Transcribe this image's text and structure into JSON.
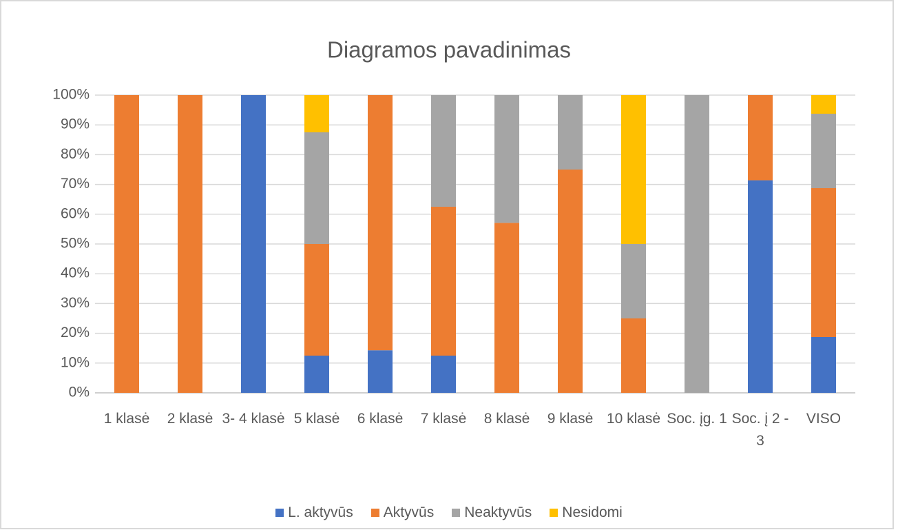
{
  "chart_data": {
    "type": "stacked_bar",
    "title": "Diagramos pavadinimas",
    "categories": [
      "1 klasė",
      "2 klasė",
      "3- 4 klasė",
      "5 klasė",
      "6 klasė",
      "7 klasė",
      "8 klasė",
      "9 klasė",
      "10 klasė",
      "Soc. įg. 1",
      "Soc. į 2 - 3",
      "VISO"
    ],
    "series": [
      {
        "name": "L. aktyvūs",
        "color": "#4472c4",
        "values": [
          0,
          0,
          100,
          12.5,
          14.3,
          12.5,
          0,
          0,
          0,
          0,
          71.4,
          18.75
        ]
      },
      {
        "name": "Aktyvūs",
        "color": "#ed7d31",
        "values": [
          100,
          100,
          0,
          37.5,
          85.7,
          50,
          57.1,
          75,
          25,
          0,
          28.6,
          50
        ]
      },
      {
        "name": "Neaktyvūs",
        "color": "#a5a5a5",
        "values": [
          0,
          0,
          0,
          37.5,
          0,
          37.5,
          42.9,
          25,
          25,
          100,
          0,
          25
        ]
      },
      {
        "name": "Nesidomi",
        "color": "#ffc000",
        "values": [
          0,
          0,
          0,
          12.5,
          0,
          0,
          0,
          0,
          50,
          0,
          0,
          6.25
        ]
      }
    ],
    "ylim": [
      0,
      100
    ],
    "yticks": [
      {
        "value": 0,
        "label": "0%"
      },
      {
        "value": 10,
        "label": "10%"
      },
      {
        "value": 20,
        "label": "20%"
      },
      {
        "value": 30,
        "label": "30%"
      },
      {
        "value": 40,
        "label": "40%"
      },
      {
        "value": 50,
        "label": "50%"
      },
      {
        "value": 60,
        "label": "60%"
      },
      {
        "value": 70,
        "label": "70%"
      },
      {
        "value": 80,
        "label": "80%"
      },
      {
        "value": 90,
        "label": "90%"
      },
      {
        "value": 100,
        "label": "100%"
      }
    ],
    "grid": true,
    "legend": "bottom"
  }
}
